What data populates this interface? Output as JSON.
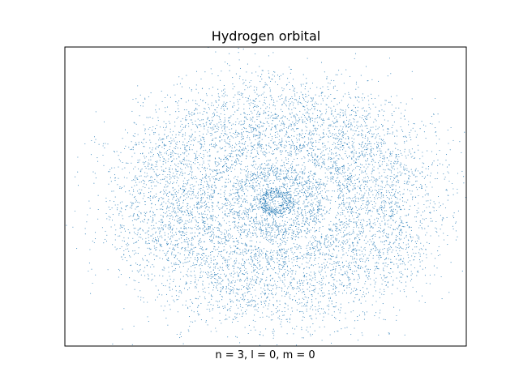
{
  "chart_data": {
    "type": "scatter",
    "title": "Hydrogen orbital",
    "xlabel": "n = 3, l = 0, m = 0",
    "ylabel": "",
    "xlim": [
      -1.0,
      1.0
    ],
    "ylim": [
      -1.0,
      1.0
    ],
    "grid": false,
    "axis_ticks": false,
    "point_color": "#1f77b4",
    "point_count_drawn": 9000,
    "series": [
      {
        "shells": [
          {
            "radius": 0.06,
            "weight": 0.06
          },
          {
            "radius": 0.18,
            "weight": 0.16
          },
          {
            "radius": 0.5,
            "weight": 0.78
          }
        ],
        "outliers": [
          {
            "x": -0.96,
            "y": 0.05
          },
          {
            "x": -0.92,
            "y": 0.02
          },
          {
            "x": 0.86,
            "y": 0.36
          },
          {
            "x": -0.78,
            "y": -0.42
          },
          {
            "x": -0.62,
            "y": -0.82
          },
          {
            "x": -0.26,
            "y": 0.86
          },
          {
            "x": 0.29,
            "y": 0.96
          },
          {
            "x": 0.02,
            "y": -0.96
          },
          {
            "x": 0.75,
            "y": -0.52
          }
        ]
      }
    ]
  }
}
